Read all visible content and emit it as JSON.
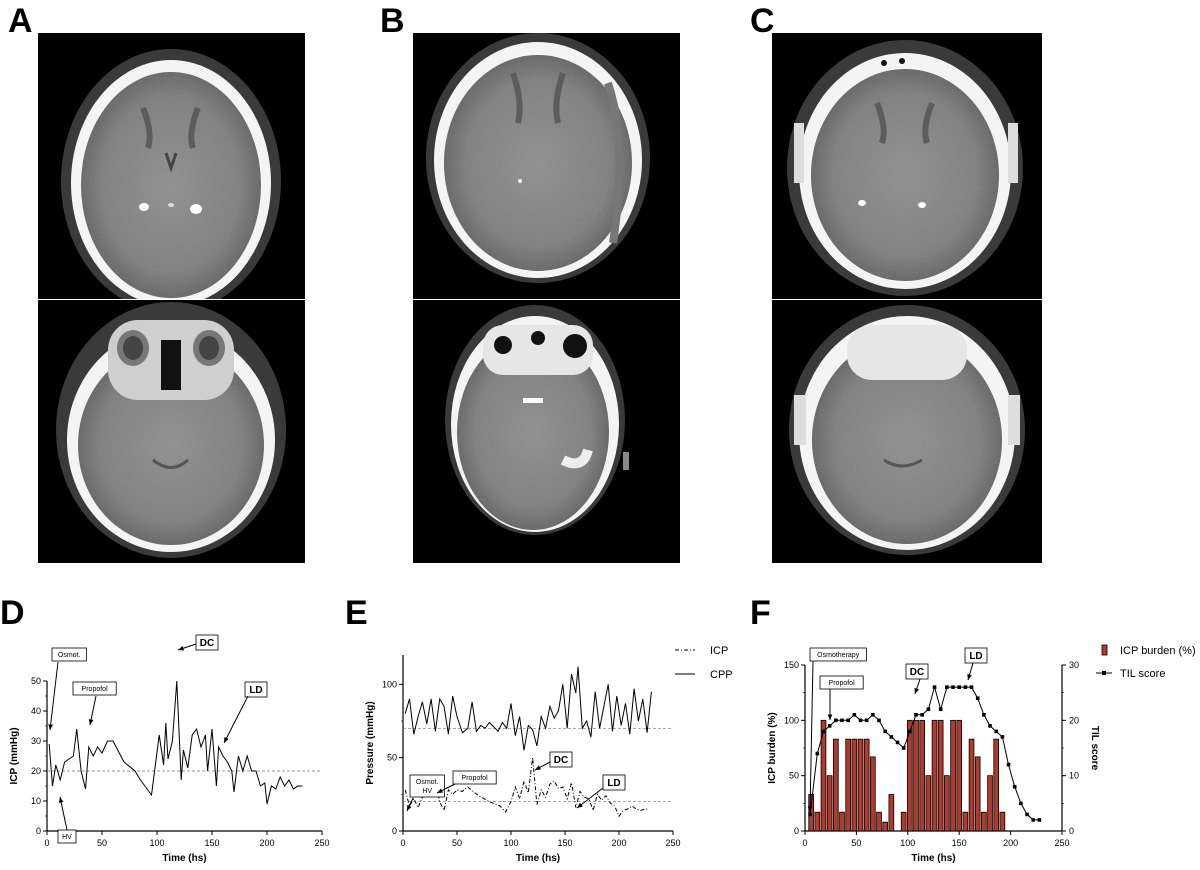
{
  "panels": {
    "a": "A",
    "b": "B",
    "c": "C",
    "d": "D",
    "e": "E",
    "f": "F"
  },
  "chart_data": [
    {
      "panel": "D",
      "type": "line",
      "xlabel": "Time (hs)",
      "ylabel": "ICP (mmHg)",
      "xlim": [
        0,
        250
      ],
      "ylim": [
        0,
        50
      ],
      "xticks": [
        0,
        50,
        100,
        150,
        200,
        250
      ],
      "yticks": [
        0,
        10,
        20,
        30,
        40,
        50
      ],
      "threshold": 20,
      "series": [
        {
          "x": [
            2,
            5,
            8,
            12,
            16,
            20,
            24,
            27,
            31,
            35,
            38,
            42,
            46,
            50,
            55,
            60,
            70,
            80,
            85,
            95,
            102,
            106,
            108,
            110,
            114,
            118,
            122,
            124,
            128,
            132,
            136,
            140,
            144,
            146,
            150,
            154,
            156,
            160,
            164,
            168,
            170,
            174,
            178,
            182,
            186,
            190,
            194,
            198,
            200,
            204,
            208,
            212,
            216,
            220,
            224,
            228,
            232
          ],
          "y": [
            29,
            15,
            22,
            17,
            23,
            24,
            25,
            34,
            20,
            14,
            28,
            25,
            28,
            26,
            30,
            30,
            23,
            20,
            17,
            12,
            32,
            22,
            36,
            24,
            30,
            50,
            17,
            27,
            21,
            32,
            34,
            28,
            32,
            20,
            34,
            15,
            28,
            25,
            23,
            20,
            13,
            25,
            20,
            25,
            20,
            20,
            15,
            16,
            9,
            15,
            14,
            18,
            15,
            17,
            14,
            15,
            15
          ]
        }
      ],
      "annotations": [
        {
          "label": "Osmot.",
          "bold": false
        },
        {
          "label": "HV",
          "bold": false
        },
        {
          "label": "Propofol",
          "bold": false
        },
        {
          "label": "DC",
          "bold": true
        },
        {
          "label": "LD",
          "bold": true
        }
      ]
    },
    {
      "panel": "E",
      "type": "line",
      "xlabel": "Time (hs)",
      "ylabel": "Pressure (mmHg)",
      "xlim": [
        0,
        250
      ],
      "ylim": [
        0,
        120
      ],
      "xticks": [
        0,
        50,
        100,
        150,
        200,
        250
      ],
      "yticks": [
        0,
        50,
        100
      ],
      "threshold_lines": [
        20,
        70
      ],
      "series": [
        {
          "name": "ICP",
          "style": "dash-dot",
          "x": [
            2,
            6,
            10,
            14,
            18,
            22,
            26,
            30,
            34,
            38,
            42,
            46,
            50,
            55,
            60,
            70,
            80,
            90,
            95,
            100,
            104,
            108,
            112,
            116,
            120,
            124,
            128,
            132,
            136,
            140,
            144,
            148,
            152,
            156,
            160,
            164,
            168,
            172,
            176,
            180,
            184,
            188,
            192,
            196,
            200,
            204,
            208,
            212,
            216,
            220,
            224,
            228
          ],
          "y": [
            28,
            17,
            22,
            16,
            23,
            25,
            30,
            34,
            20,
            14,
            28,
            25,
            28,
            27,
            30,
            24,
            20,
            17,
            13,
            20,
            30,
            22,
            34,
            26,
            50,
            18,
            28,
            23,
            32,
            34,
            29,
            30,
            22,
            33,
            16,
            27,
            23,
            22,
            14,
            25,
            21,
            24,
            19,
            17,
            10,
            14,
            15,
            17,
            15,
            14,
            15,
            15
          ]
        },
        {
          "name": "CPP",
          "style": "solid",
          "x": [
            2,
            6,
            10,
            14,
            18,
            22,
            26,
            30,
            34,
            38,
            42,
            46,
            50,
            55,
            60,
            64,
            68,
            72,
            76,
            80,
            84,
            88,
            92,
            96,
            100,
            104,
            108,
            112,
            116,
            120,
            124,
            128,
            132,
            136,
            140,
            144,
            148,
            152,
            156,
            160,
            162,
            166,
            170,
            174,
            178,
            182,
            186,
            190,
            194,
            198,
            202,
            206,
            210,
            214,
            218,
            222,
            226,
            230
          ],
          "y": [
            80,
            90,
            66,
            78,
            88,
            73,
            90,
            68,
            90,
            85,
            66,
            92,
            78,
            67,
            70,
            88,
            68,
            72,
            70,
            74,
            71,
            68,
            74,
            70,
            87,
            65,
            78,
            55,
            72,
            69,
            58,
            78,
            70,
            85,
            77,
            82,
            100,
            70,
            107,
            94,
            112,
            70,
            75,
            64,
            95,
            70,
            85,
            100,
            68,
            92,
            72,
            87,
            66,
            97,
            75,
            90,
            67,
            95
          ]
        }
      ],
      "legend": [
        "ICP",
        "CPP"
      ],
      "annotations": [
        {
          "label": "Osmot.",
          "label2": "HV",
          "bold": false
        },
        {
          "label": "Propofol",
          "bold": false
        },
        {
          "label": "DC",
          "bold": true
        },
        {
          "label": "LD",
          "bold": true
        }
      ]
    },
    {
      "panel": "F",
      "type": "bar",
      "xlabel": "Time (hs)",
      "ylabel": "ICP burden (%)",
      "y2label": "TIL score",
      "xlim": [
        0,
        250
      ],
      "ylim": [
        0,
        150
      ],
      "y2lim": [
        0,
        30
      ],
      "xticks": [
        0,
        50,
        100,
        150,
        200,
        250
      ],
      "yticks": [
        0,
        50,
        100,
        150
      ],
      "y2ticks": [
        0,
        10,
        20,
        30
      ],
      "bar_color": "#b03a2e",
      "series": [
        {
          "name": "ICP burden (%)",
          "x": [
            6,
            12,
            18,
            24,
            30,
            36,
            42,
            48,
            54,
            60,
            66,
            72,
            78,
            84,
            90,
            96,
            102,
            108,
            114,
            120,
            126,
            132,
            138,
            144,
            150,
            156,
            162,
            168,
            174,
            180,
            186,
            192,
            198,
            204,
            210,
            216,
            222,
            228
          ],
          "values": [
            33,
            17,
            100,
            50,
            83,
            17,
            83,
            83,
            83,
            83,
            67,
            17,
            8,
            33,
            0,
            17,
            100,
            100,
            100,
            50,
            100,
            100,
            50,
            100,
            100,
            17,
            83,
            67,
            17,
            50,
            83,
            17,
            0,
            0,
            0,
            0,
            0,
            0
          ]
        },
        {
          "name": "TIL score",
          "x": [
            5,
            12,
            18,
            24,
            30,
            36,
            42,
            48,
            54,
            60,
            66,
            72,
            78,
            84,
            90,
            96,
            102,
            108,
            114,
            120,
            126,
            132,
            138,
            144,
            150,
            156,
            162,
            168,
            174,
            180,
            186,
            192,
            198,
            204,
            210,
            216,
            222,
            228
          ],
          "values": [
            3,
            14,
            18,
            19,
            20,
            20,
            20,
            21,
            20,
            20,
            21,
            20,
            18,
            17,
            16,
            15,
            18,
            21,
            21,
            22,
            26,
            22,
            26,
            26,
            26,
            26,
            26,
            24,
            21,
            19,
            18,
            17,
            12,
            8,
            5,
            3,
            2,
            2
          ]
        }
      ],
      "legend": [
        "ICP burden (%)",
        "TIL score"
      ],
      "annotations": [
        {
          "label": "Osmotherapy",
          "bold": false
        },
        {
          "label": "Propofol",
          "bold": false
        },
        {
          "label": "DC",
          "bold": false
        },
        {
          "label": "LD",
          "bold": false
        }
      ]
    }
  ]
}
